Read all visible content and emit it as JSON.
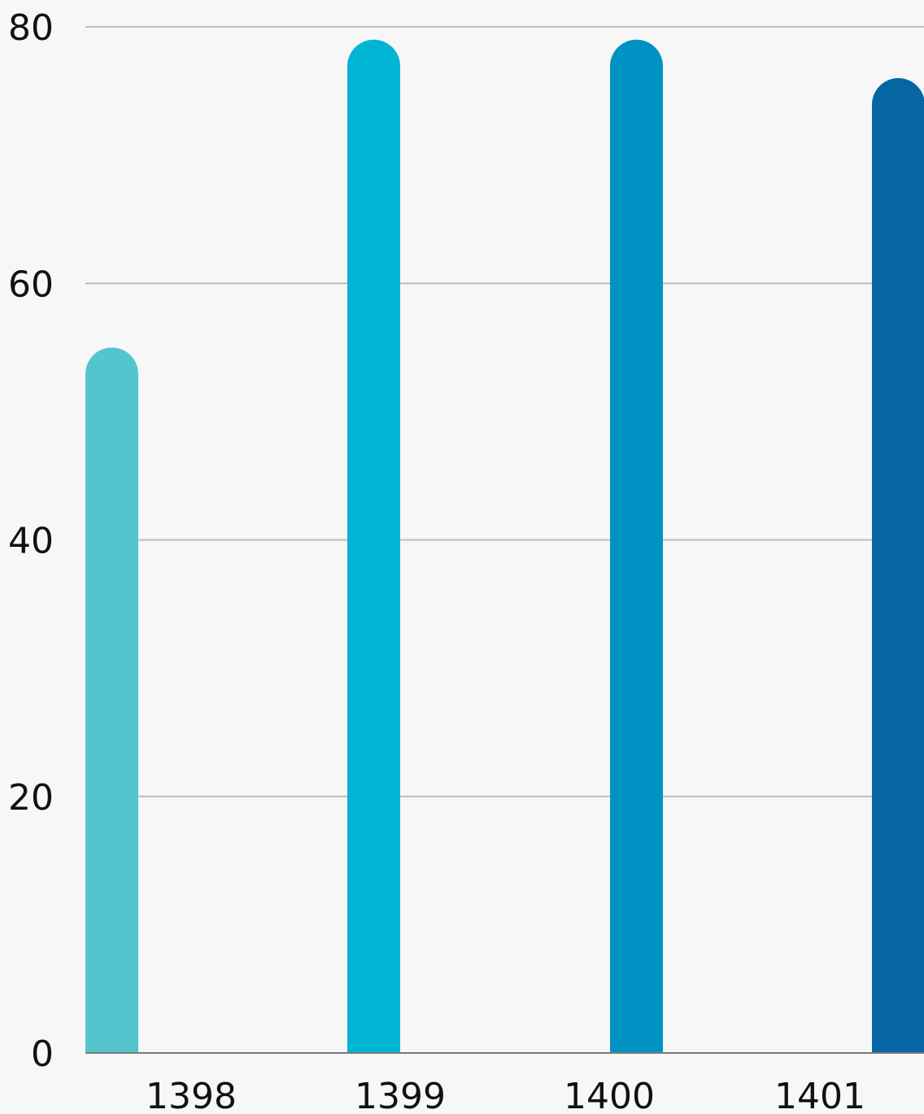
{
  "chart_data": {
    "type": "bar",
    "title": "",
    "xlabel": "",
    "ylabel": "",
    "categories": [
      "1398",
      "1399",
      "1400",
      "1401"
    ],
    "values": [
      55,
      79,
      79,
      76
    ],
    "colors": [
      "#55c5cd",
      "#00b5d4",
      "#0092c2",
      "#0665a3"
    ],
    "ylim": [
      0,
      80
    ],
    "yticks": [
      0,
      20,
      40,
      60,
      80
    ],
    "grid": true,
    "legend": "none",
    "bar_style": "rounded-top"
  }
}
